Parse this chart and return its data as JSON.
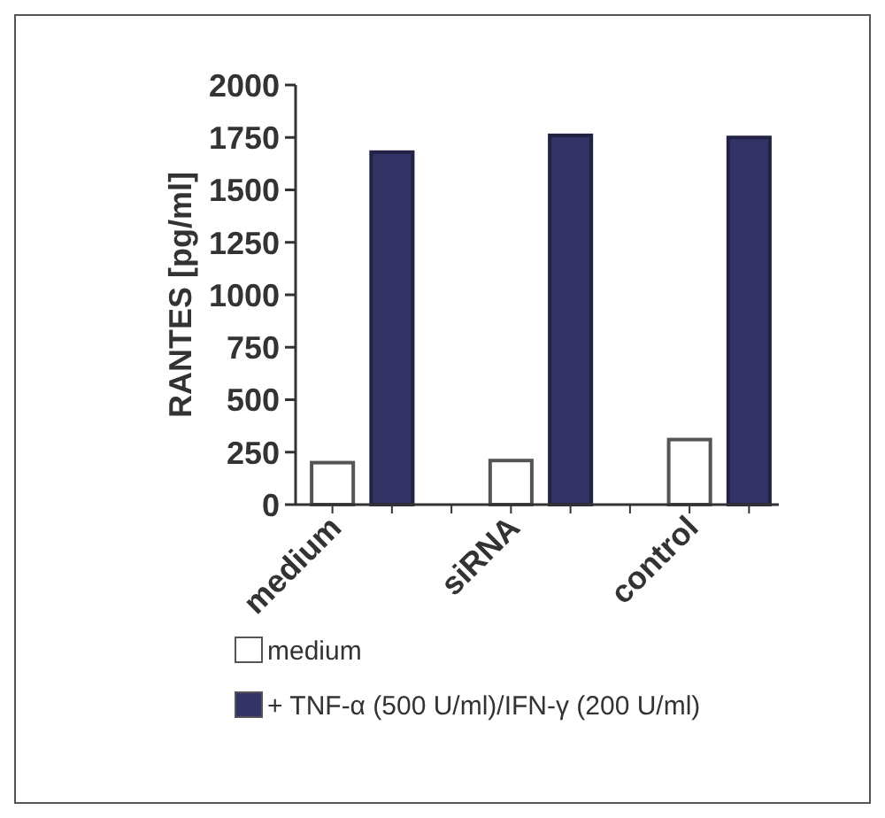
{
  "chart_data": {
    "type": "bar",
    "ylabel": "RANTES [pg/ml]",
    "categories": [
      "medium",
      null,
      null,
      "siRNA",
      null,
      null,
      "control",
      null
    ],
    "series": [
      {
        "name": "medium",
        "color": "#ffffff",
        "values": [
          200,
          null,
          null,
          210,
          null,
          null,
          310,
          null
        ]
      },
      {
        "name": "+ TNF-α (500 U/ml)/IFN-γ (200 U/ml)",
        "color": "#333366",
        "values": [
          null,
          1680,
          0,
          null,
          1760,
          0,
          null,
          1750
        ]
      }
    ],
    "ylim": [
      0,
      2000
    ],
    "yticks": [
      0,
      250,
      500,
      750,
      1000,
      1250,
      1500,
      1750,
      2000
    ],
    "grid": false,
    "legend": "bottom left"
  }
}
